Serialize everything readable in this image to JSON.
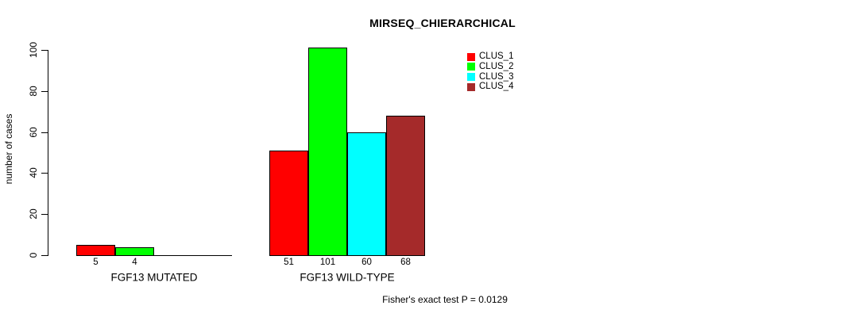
{
  "chart_data": {
    "type": "bar",
    "title": "MIRSEQ_CHIERARCHICAL",
    "ylabel": "number of cases",
    "xlabel": "",
    "ylim": [
      0,
      100
    ],
    "yticks": [
      0,
      20,
      40,
      60,
      80,
      100
    ],
    "grid": false,
    "legend_position": "top-right-inside",
    "categories": [
      "FGF13 MUTATED",
      "FGF13 WILD-TYPE"
    ],
    "series": [
      {
        "name": "CLUS_1",
        "color": "#ff0000",
        "values": [
          5,
          51
        ]
      },
      {
        "name": "CLUS_2",
        "color": "#00ff00",
        "values": [
          4,
          101
        ]
      },
      {
        "name": "CLUS_3",
        "color": "#00ffff",
        "values": [
          0,
          60
        ]
      },
      {
        "name": "CLUS_4",
        "color": "#a52a2a",
        "values": [
          0,
          68
        ]
      }
    ],
    "bar_value_labels": [
      [
        "5",
        "4",
        "",
        ""
      ],
      [
        "51",
        "101",
        "60",
        "68"
      ]
    ],
    "annotation": "Fisher's exact test P = 0.0129",
    "axis_color": "#000000",
    "bar_border_color": "#000000"
  }
}
